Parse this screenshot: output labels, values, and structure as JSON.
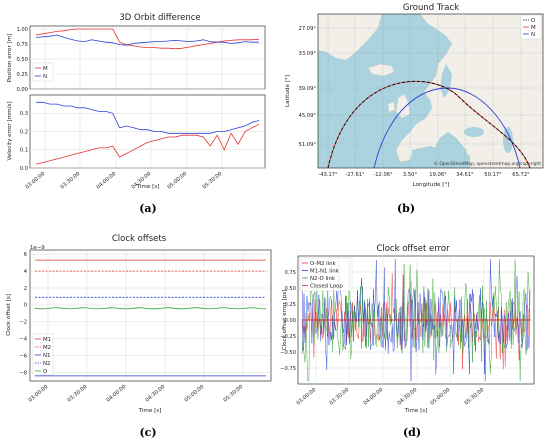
{
  "captions": {
    "a": "(a)",
    "b": "(b)",
    "c": "(c)",
    "d": "(d)"
  },
  "colors": {
    "M": "#e8312f",
    "N": "#2b3fd6",
    "O": "#111111",
    "M1": "#e8312f",
    "M2": "#e8312f",
    "N1": "#2b3fd6",
    "N2": "#2b3fd6",
    "Oc": "#2ca02c",
    "link_om2": "#e8312f",
    "link_m1n1": "#2b3fd6",
    "link_n2o": "#2ca02c",
    "closed": "#d62728"
  },
  "time_ticks": [
    "03:00:00",
    "03:30:00",
    "04:00:00",
    "04:30:00",
    "05:00:00",
    "05:30:00"
  ],
  "chart_data": [
    {
      "id": "a_top",
      "type": "line",
      "title": "3D Orbit difference",
      "ylabel": "Position error [m]",
      "xlabel": "",
      "ylim": [
        0,
        1.0
      ],
      "yticks": [
        "0.00",
        "0.25",
        "0.50",
        "0.75",
        "1.00"
      ],
      "x": [
        0,
        5,
        10,
        15,
        20,
        25,
        30,
        35,
        40,
        45,
        50,
        55,
        60,
        65,
        70,
        75,
        80,
        85,
        90,
        95,
        100,
        105,
        110,
        115,
        120,
        125,
        130,
        135,
        140,
        145,
        150,
        155,
        160
      ],
      "series": [
        {
          "name": "M",
          "values": [
            0.9,
            0.92,
            0.94,
            0.96,
            0.97,
            0.99,
            1.0,
            1.0,
            1.0,
            1.0,
            1.0,
            1.0,
            0.78,
            0.74,
            0.72,
            0.7,
            0.69,
            0.69,
            0.68,
            0.68,
            0.67,
            0.68,
            0.7,
            0.72,
            0.74,
            0.76,
            0.78,
            0.8,
            0.81,
            0.82,
            0.82,
            0.82,
            0.83
          ]
        },
        {
          "name": "N",
          "values": [
            0.86,
            0.87,
            0.88,
            0.9,
            0.86,
            0.83,
            0.8,
            0.79,
            0.82,
            0.8,
            0.78,
            0.77,
            0.74,
            0.73,
            0.76,
            0.77,
            0.78,
            0.79,
            0.79,
            0.8,
            0.81,
            0.8,
            0.79,
            0.8,
            0.82,
            0.79,
            0.78,
            0.78,
            0.76,
            0.77,
            0.79,
            0.78,
            0.78
          ]
        }
      ]
    },
    {
      "id": "a_bottom",
      "type": "line",
      "ylabel": "Velocity error [mm/s]",
      "xlabel": "Time [s]",
      "ylim": [
        0,
        0.4
      ],
      "yticks": [
        "0.0",
        "0.1",
        "0.2",
        "0.3"
      ],
      "x": [
        0,
        5,
        10,
        15,
        20,
        25,
        30,
        35,
        40,
        45,
        50,
        55,
        60,
        65,
        70,
        75,
        80,
        85,
        90,
        95,
        100,
        105,
        110,
        115,
        120,
        125,
        130,
        135,
        140,
        145,
        150,
        155,
        160
      ],
      "series": [
        {
          "name": "M",
          "values": [
            0.02,
            0.03,
            0.04,
            0.05,
            0.06,
            0.07,
            0.08,
            0.09,
            0.1,
            0.11,
            0.11,
            0.12,
            0.06,
            0.08,
            0.1,
            0.12,
            0.14,
            0.15,
            0.16,
            0.17,
            0.17,
            0.18,
            0.18,
            0.18,
            0.17,
            0.12,
            0.18,
            0.1,
            0.19,
            0.13,
            0.2,
            0.22,
            0.24
          ]
        },
        {
          "name": "N",
          "values": [
            0.36,
            0.36,
            0.35,
            0.35,
            0.34,
            0.34,
            0.33,
            0.33,
            0.32,
            0.31,
            0.31,
            0.3,
            0.22,
            0.23,
            0.22,
            0.21,
            0.21,
            0.2,
            0.2,
            0.19,
            0.19,
            0.19,
            0.19,
            0.19,
            0.19,
            0.19,
            0.2,
            0.2,
            0.21,
            0.22,
            0.23,
            0.25,
            0.26
          ]
        }
      ]
    },
    {
      "id": "b",
      "type": "map",
      "title": "Ground Track",
      "xlabel": "Longitude [°]",
      "ylabel": "Latitude [°]",
      "xticks": [
        "-43.17°",
        "-27.61°",
        "-12.06°",
        "3.50°",
        "19.06°",
        "34.61°",
        "50.17°",
        "65.72°"
      ],
      "yticks": [
        "27.09°",
        "33.09°",
        "39.09°",
        "45.09°",
        "51.09°"
      ],
      "attribution": "© OpenStreetMap; openstreetmap.org/copyright",
      "legend": [
        "O",
        "M",
        "N"
      ]
    },
    {
      "id": "c",
      "type": "line",
      "title": "Clock offsets",
      "ylabel": "Clock offset [s]",
      "xlabel": "Time [s]",
      "exponent": "1e−9",
      "ylim": [
        -9,
        6.5
      ],
      "yticks": [
        "6",
        "4",
        "2",
        "0",
        "−2",
        "−4",
        "−6",
        "−8"
      ],
      "series": [
        {
          "name": "M1",
          "level": 5.3,
          "style": "solid"
        },
        {
          "name": "M2",
          "level": 4.0,
          "style": "dashed"
        },
        {
          "name": "N1",
          "level": -8.4,
          "style": "solid"
        },
        {
          "name": "N2",
          "level": 0.9,
          "style": "dashed"
        },
        {
          "name": "O",
          "level": -0.4,
          "style": "solid"
        }
      ]
    },
    {
      "id": "d",
      "type": "line",
      "title": "Clock offset error",
      "ylabel": "Clock offset error [ps]",
      "xlabel": "Time [s]",
      "ylim": [
        -1.0,
        1.0
      ],
      "yticks": [
        "0.75",
        "0.50",
        "0.25",
        "0.00",
        "−0.25",
        "−0.50",
        "−0.75"
      ],
      "legend": [
        "O-M2 link",
        "M1-N1 link",
        "N2-O link",
        "Closed Loop"
      ]
    }
  ]
}
